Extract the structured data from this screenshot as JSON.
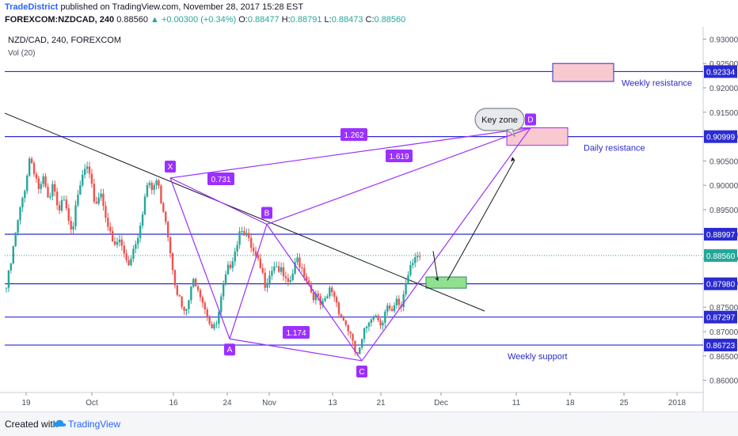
{
  "header": {
    "publisher": "TradeDistrict",
    "published_text": "published on TradingView.com, November 28, 2017 15:28 EST",
    "symbol": "FOREXCOM:NZDCAD, 240",
    "last": "0.88560",
    "change": "+0.00300 (+0.34%)",
    "open_label": "O:",
    "open": "0.88477",
    "high_label": "H:",
    "high": "0.88791",
    "low_label": "L:",
    "low": "0.88473",
    "close_label": "C:",
    "close": "0.88560"
  },
  "legend": {
    "title": "NZD/CAD, 240, FOREXCOM",
    "volume": "Vol (20)"
  },
  "footer": {
    "created": "Created with",
    "brand": "TradingView"
  },
  "colors": {
    "level": "#2b2bd1",
    "pattern": "#9b30ff",
    "up": "#26a69a",
    "down": "#ef5350",
    "price_tag": "#2b2bd1"
  },
  "chart_data": {
    "type": "candlestick",
    "ylim": [
      0.8575,
      0.9325
    ],
    "y_ticks": [
      "0.86000",
      "0.86500",
      "0.87000",
      "0.87500",
      "0.88000",
      "0.88500",
      "0.89000",
      "0.89500",
      "0.90000",
      "0.90500",
      "0.91000",
      "0.91500",
      "0.92000",
      "0.92500",
      "0.93000"
    ],
    "x_ticks": [
      "19",
      "Oct",
      "16",
      "24",
      "Nov",
      "13",
      "21",
      "Dec",
      "11",
      "18",
      "25",
      "2018"
    ],
    "levels": [
      {
        "price": 0.92334,
        "label": "0.92334",
        "note": "Weekly resistance"
      },
      {
        "price": 0.90999,
        "label": "0.90999",
        "note": "Daily resistance"
      },
      {
        "price": 0.88997,
        "label": "0.88997",
        "note": ""
      },
      {
        "price": 0.8798,
        "label": "0.87980",
        "note": ""
      },
      {
        "price": 0.87297,
        "label": "0.87297",
        "note": ""
      },
      {
        "price": 0.86723,
        "label": "0.86723",
        "note": "Weekly support"
      }
    ],
    "current_price": {
      "label": "0.88560",
      "price": 0.8856
    },
    "pattern_points": [
      {
        "name": "X",
        "date_index": 215,
        "price": 0.9015
      },
      {
        "name": "A",
        "date_index": 290,
        "price": 0.8685
      },
      {
        "name": "B",
        "date_index": 337,
        "price": 0.892
      },
      {
        "name": "C",
        "date_index": 457,
        "price": 0.864
      },
      {
        "name": "D",
        "date_index": 670,
        "price": 0.9118
      }
    ],
    "ratios": [
      {
        "label": "0.731"
      },
      {
        "label": "1.174"
      },
      {
        "label": "1.262"
      },
      {
        "label": "1.619"
      }
    ],
    "callout": "Key zone",
    "candles_seed": [
      0.879,
      0.884,
      0.89,
      0.895,
      0.9,
      0.906,
      0.903,
      0.899,
      0.901,
      0.896,
      0.9,
      0.894,
      0.899,
      0.895,
      0.891,
      0.896,
      0.901,
      0.904,
      0.9,
      0.896,
      0.899,
      0.895,
      0.89,
      0.887,
      0.889,
      0.886,
      0.884,
      0.887,
      0.89,
      0.895,
      0.9,
      0.899,
      0.901,
      0.897,
      0.893,
      0.886,
      0.88,
      0.876,
      0.873,
      0.877,
      0.881,
      0.879,
      0.876,
      0.873,
      0.87,
      0.872,
      0.878,
      0.882,
      0.885,
      0.888,
      0.892,
      0.89,
      0.887,
      0.885,
      0.883,
      0.88,
      0.882,
      0.884,
      0.883,
      0.881,
      0.879,
      0.882,
      0.885,
      0.883,
      0.881,
      0.878,
      0.877,
      0.875,
      0.876,
      0.879,
      0.877,
      0.874,
      0.872,
      0.87,
      0.866,
      0.865,
      0.869,
      0.872,
      0.874,
      0.873,
      0.872,
      0.875,
      0.873,
      0.876,
      0.875,
      0.88,
      0.884,
      0.886,
      0.885
    ]
  }
}
